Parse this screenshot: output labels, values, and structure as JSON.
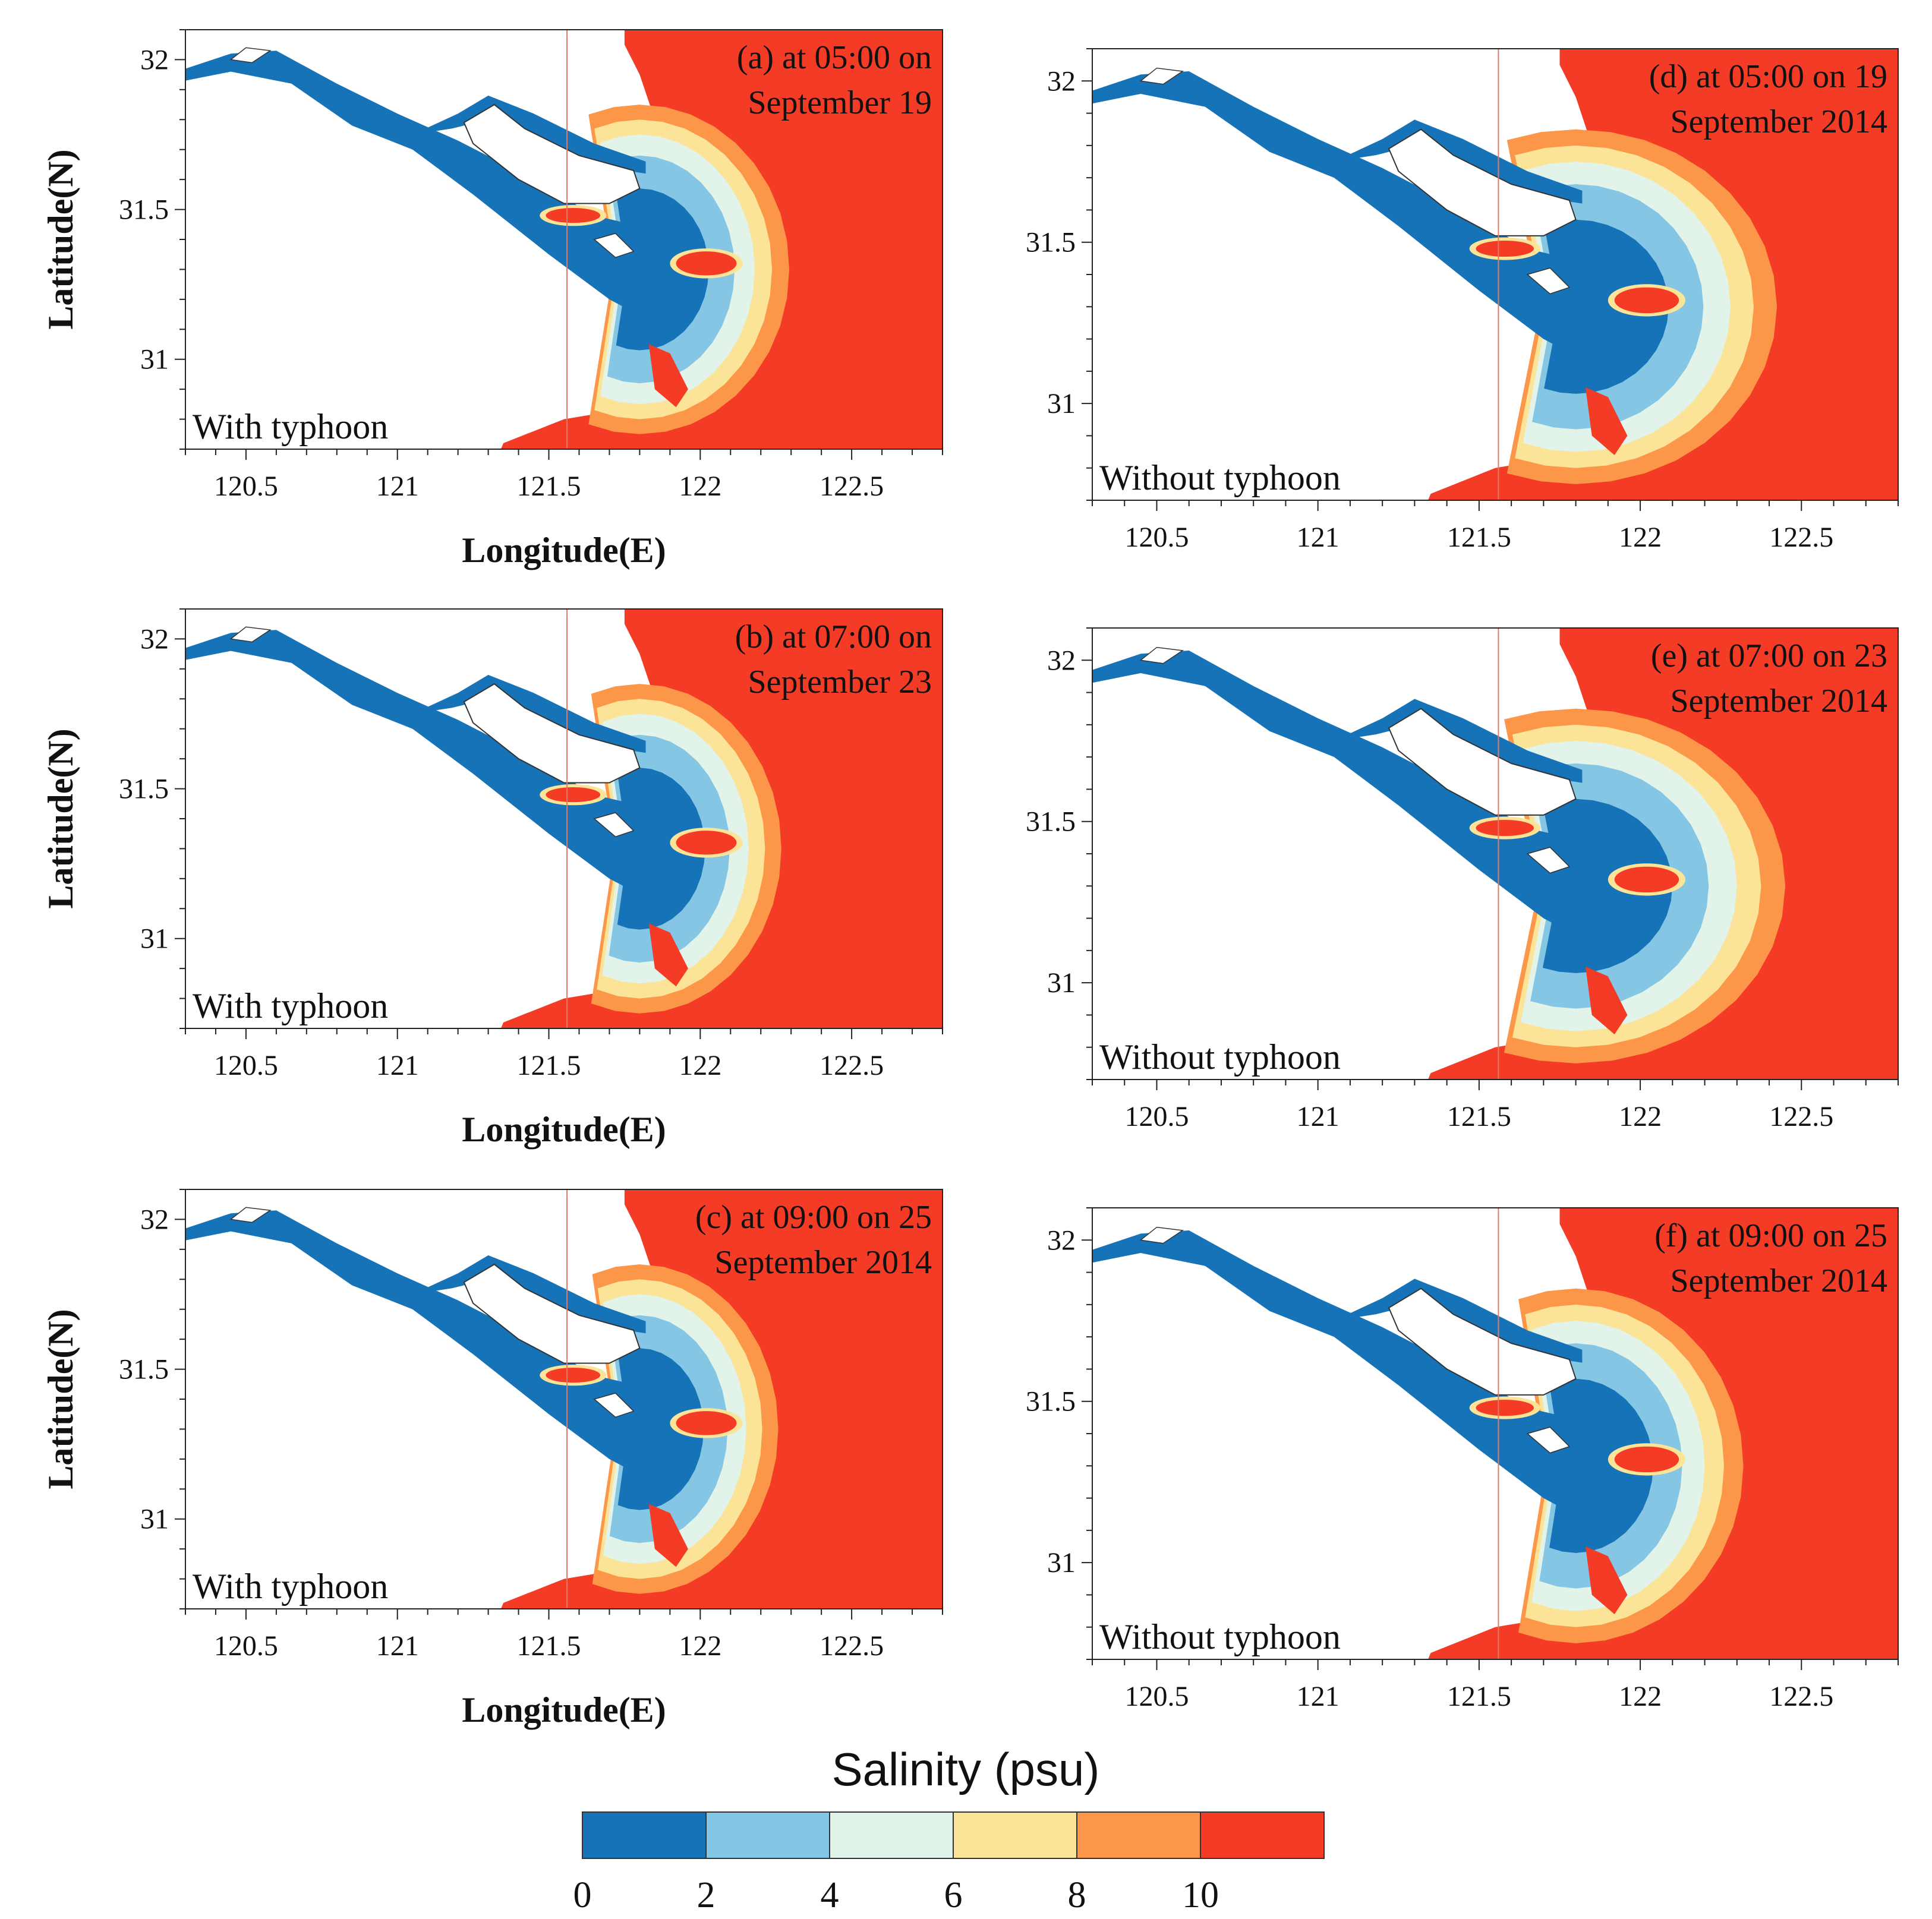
{
  "figure": {
    "legend_title": "Salinity (psu)",
    "color_levels": [
      0,
      2,
      4,
      6,
      8,
      10
    ],
    "colors": [
      "#1773b8",
      "#85c6e4",
      "#e2f3ea",
      "#fbe397",
      "#fc9649",
      "#f33b26"
    ],
    "land_color": "#ffffff"
  },
  "chart_data": [
    {
      "type": "contour-map",
      "id": "a",
      "title_lines": [
        "(a) at 05:00 on",
        "September 19"
      ],
      "scenario": "With typhoon",
      "xlabel": "Longitude(E)",
      "ylabel": "Latitude(N)",
      "xlim": [
        120.3,
        122.8
      ],
      "ylim": [
        30.7,
        32.1
      ],
      "xticks": [
        "120.5",
        "121",
        "121.5",
        "122",
        "122.5"
      ],
      "yticks": [
        "31",
        "31.5",
        "32"
      ],
      "plume_scale": 0.95
    },
    {
      "type": "contour-map",
      "id": "b",
      "title_lines": [
        "(b) at 07:00 on",
        "September 23"
      ],
      "scenario": "With typhoon",
      "xlabel": "Longitude(E)",
      "ylabel": "Latitude(N)",
      "xlim": [
        120.3,
        122.8
      ],
      "ylim": [
        30.7,
        32.1
      ],
      "xticks": [
        "120.5",
        "121",
        "121.5",
        "122",
        "122.5"
      ],
      "yticks": [
        "31",
        "31.5",
        "32"
      ],
      "plume_scale": 0.9
    },
    {
      "type": "contour-map",
      "id": "c",
      "title_lines": [
        "(c) at 09:00 on 25",
        "September 2014"
      ],
      "scenario": "With typhoon",
      "xlabel": "Longitude(E)",
      "ylabel": "Latitude(N)",
      "xlim": [
        120.3,
        122.8
      ],
      "ylim": [
        30.7,
        32.1
      ],
      "xticks": [
        "120.5",
        "121",
        "121.5",
        "122",
        "122.5"
      ],
      "yticks": [
        "31",
        "31.5",
        "32"
      ],
      "plume_scale": 0.88
    },
    {
      "type": "contour-map",
      "id": "d",
      "title_lines": [
        "(d) at 05:00 on 19",
        "September 2014"
      ],
      "scenario": "Without typhoon",
      "xlabel": "",
      "ylabel": "",
      "xlim": [
        120.3,
        122.8
      ],
      "ylim": [
        30.7,
        32.1
      ],
      "xticks": [
        "120.5",
        "121",
        "121.5",
        "122",
        "122.5"
      ],
      "yticks": [
        "31",
        "31.5",
        "32"
      ],
      "plume_scale": 1.2
    },
    {
      "type": "contour-map",
      "id": "e",
      "title_lines": [
        "(e) at 07:00 on 23",
        "September 2014"
      ],
      "scenario": "Without typhoon",
      "xlabel": "",
      "ylabel": "",
      "xlim": [
        120.3,
        122.8
      ],
      "ylim": [
        30.7,
        32.1
      ],
      "xticks": [
        "120.5",
        "121",
        "121.5",
        "122",
        "122.5"
      ],
      "yticks": [
        "31",
        "31.5",
        "32"
      ],
      "plume_scale": 1.25
    },
    {
      "type": "contour-map",
      "id": "f",
      "title_lines": [
        "(f) at 09:00 on 25",
        "September 2014"
      ],
      "scenario": "Without typhoon",
      "xlabel": "",
      "ylabel": "",
      "xlim": [
        120.3,
        122.8
      ],
      "ylim": [
        30.7,
        32.1
      ],
      "xticks": [
        "120.5",
        "121",
        "121.5",
        "122",
        "122.5"
      ],
      "yticks": [
        "31",
        "31.5",
        "32"
      ],
      "plume_scale": 1.0
    }
  ]
}
